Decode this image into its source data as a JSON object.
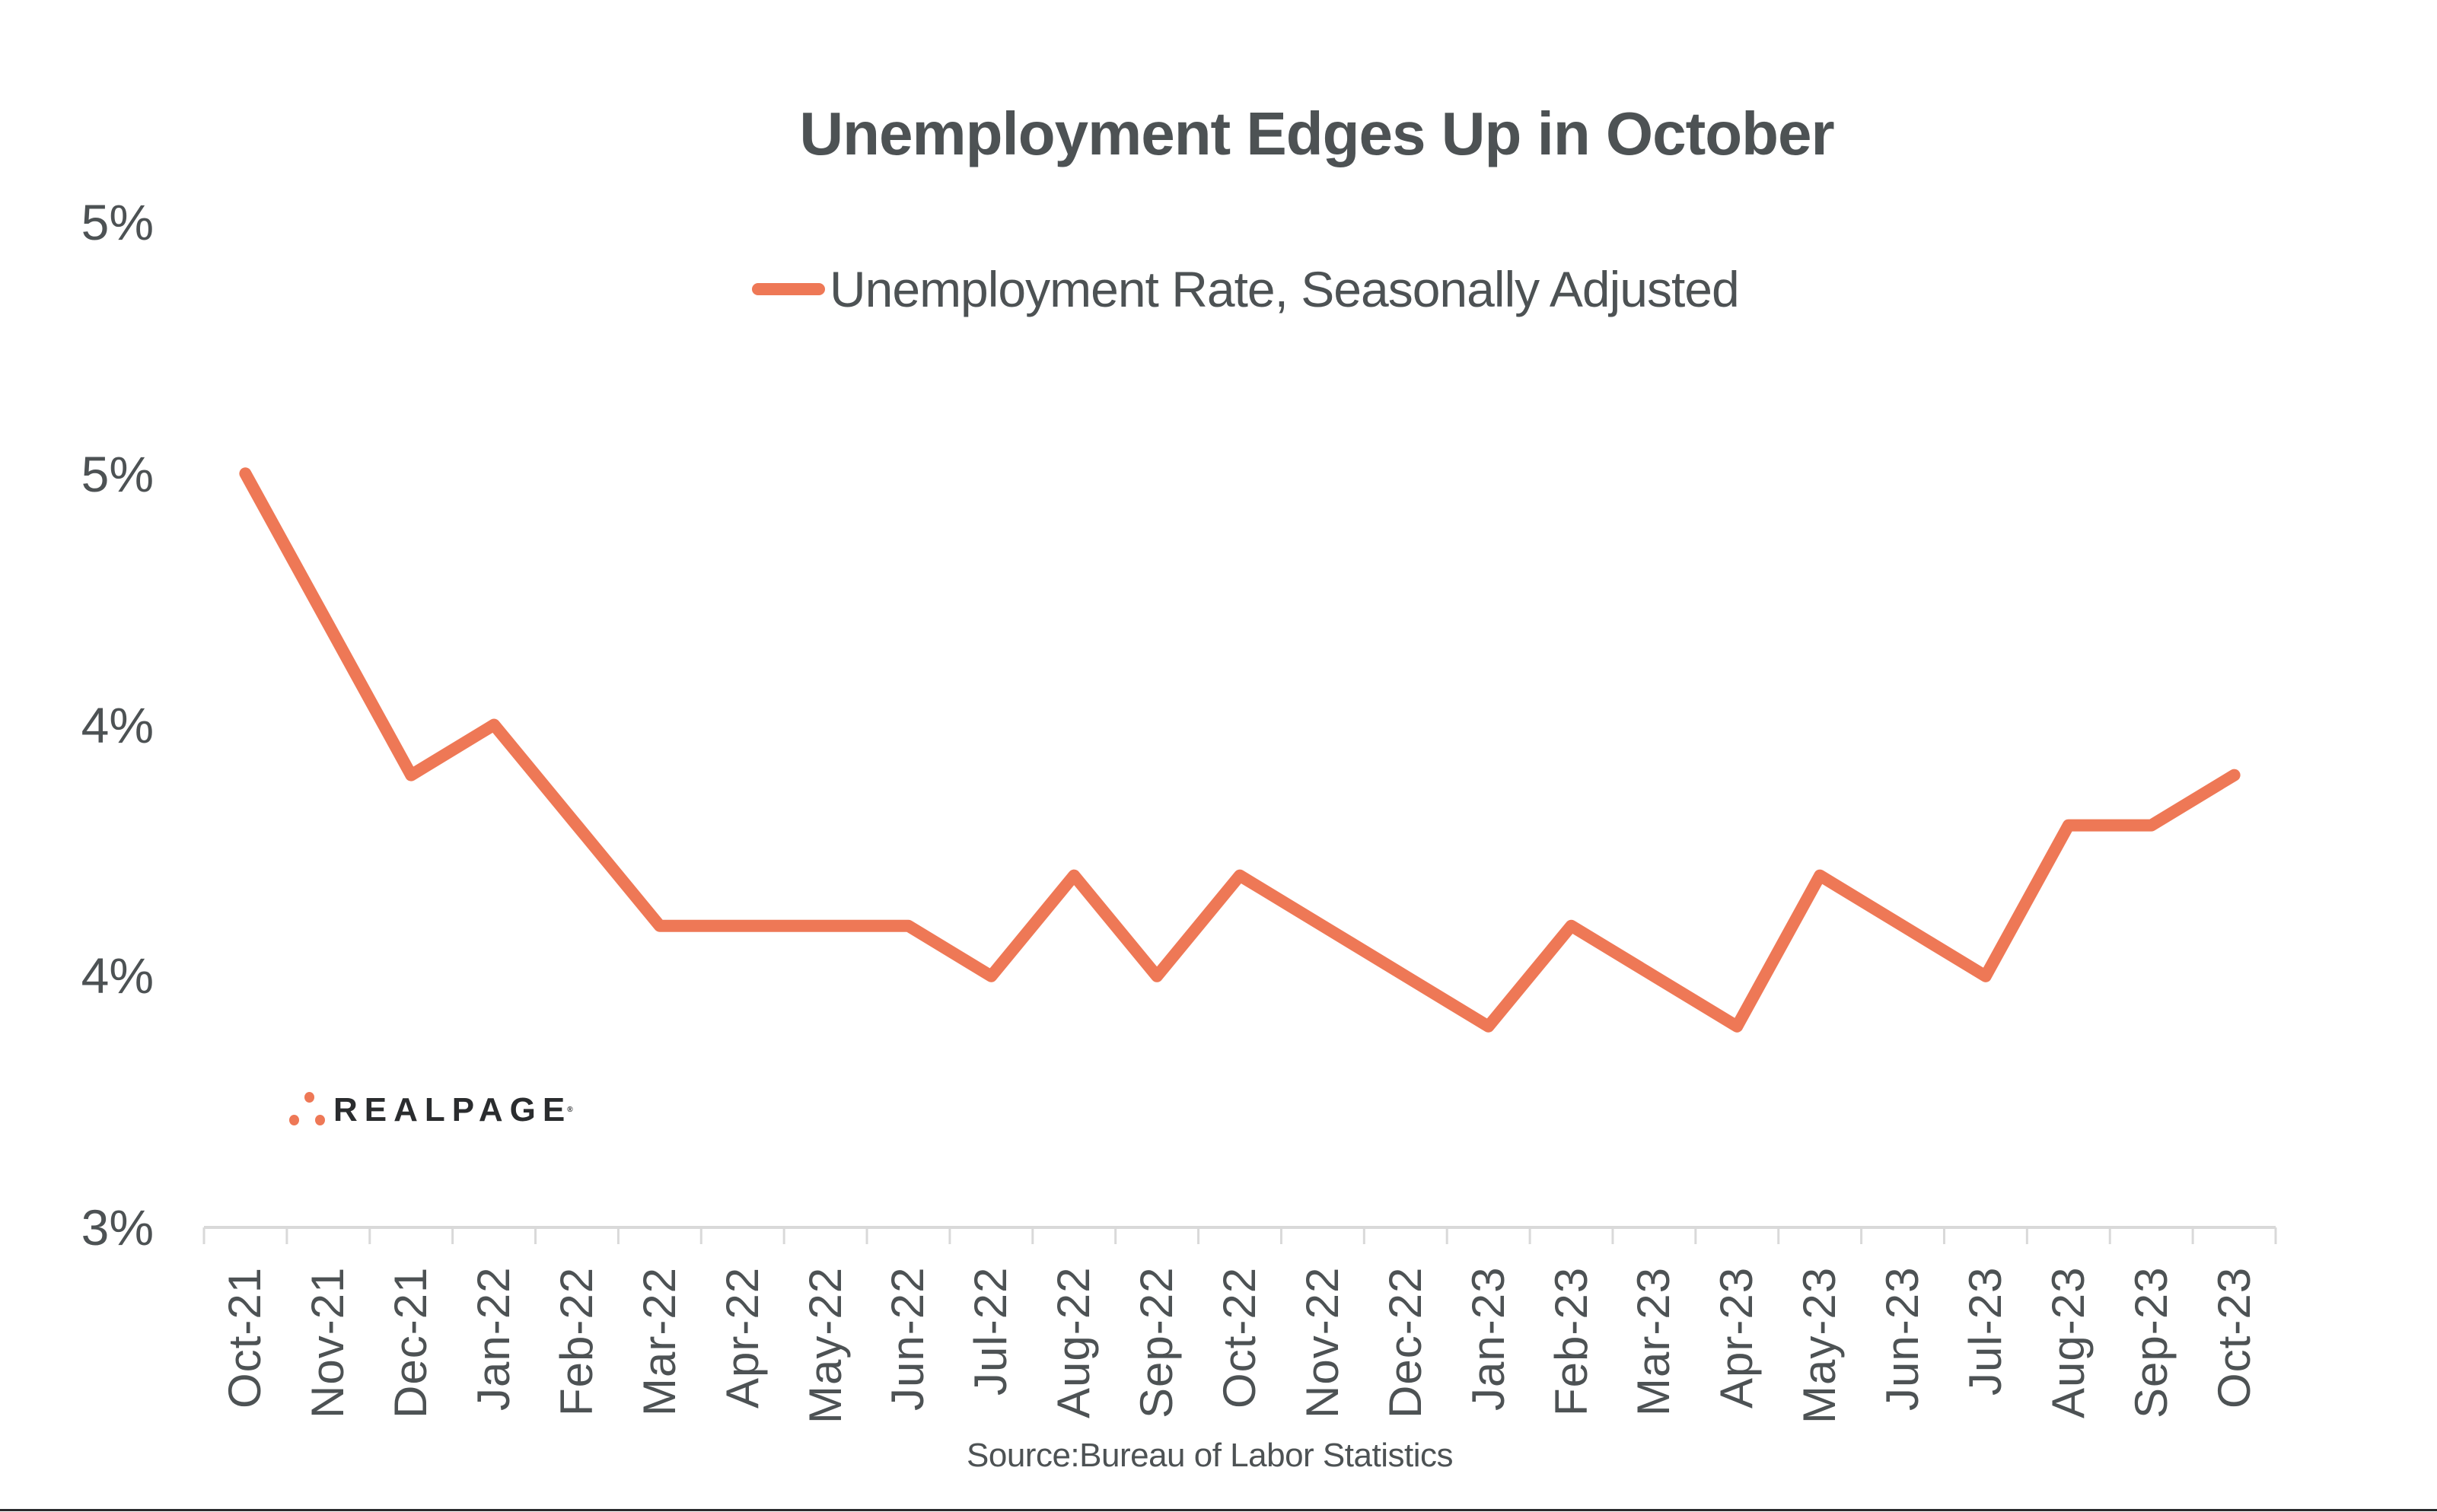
{
  "title": "Unemployment Edges Up in October",
  "legend": {
    "label": "Unemployment Rate, Seasonally Adjusted",
    "color": "#ee7856"
  },
  "source": "Source:Bureau of Labor Statistics",
  "logo": {
    "text": "REALPAGE",
    "registered": "®",
    "dot_color": "#ee7856"
  },
  "colors": {
    "line": "#ee7856",
    "text": "#4d5254",
    "axis": "#d9d9d9"
  },
  "y_axis": {
    "labels": [
      "5%",
      "5%",
      "4%",
      "4%",
      "3%"
    ]
  },
  "chart_data": {
    "type": "line",
    "title": "Unemployment Edges Up in October",
    "xlabel": "",
    "ylabel": "",
    "categories": [
      "Oct-21",
      "Nov-21",
      "Dec-21",
      "Jan-22",
      "Feb-22",
      "Mar-22",
      "Apr-22",
      "May-22",
      "Jun-22",
      "Jul-22",
      "Aug-22",
      "Sep-22",
      "Oct-22",
      "Nov-22",
      "Dec-22",
      "Jan-23",
      "Feb-23",
      "Mar-23",
      "Apr-23",
      "May-23",
      "Jun-23",
      "Jul-23",
      "Aug-23",
      "Sep-23",
      "Oct-23"
    ],
    "series": [
      {
        "name": "Unemployment Rate, Seasonally Adjusted",
        "color": "#ee7856",
        "values": [
          4.5,
          4.2,
          3.9,
          4.0,
          3.8,
          3.6,
          3.6,
          3.6,
          3.6,
          3.5,
          3.7,
          3.5,
          3.7,
          3.6,
          3.5,
          3.4,
          3.6,
          3.5,
          3.4,
          3.7,
          3.6,
          3.5,
          3.8,
          3.8,
          3.9
        ]
      }
    ],
    "ylim": [
      3.0,
      5.0
    ],
    "y_ticks": [
      3.0,
      3.5,
      4.0,
      4.5,
      5.0
    ],
    "y_tick_labels": [
      "3%",
      "4%",
      "4%",
      "5%",
      "5%"
    ],
    "grid": false,
    "legend_position": "top",
    "source": "Source:Bureau of Labor Statistics"
  }
}
